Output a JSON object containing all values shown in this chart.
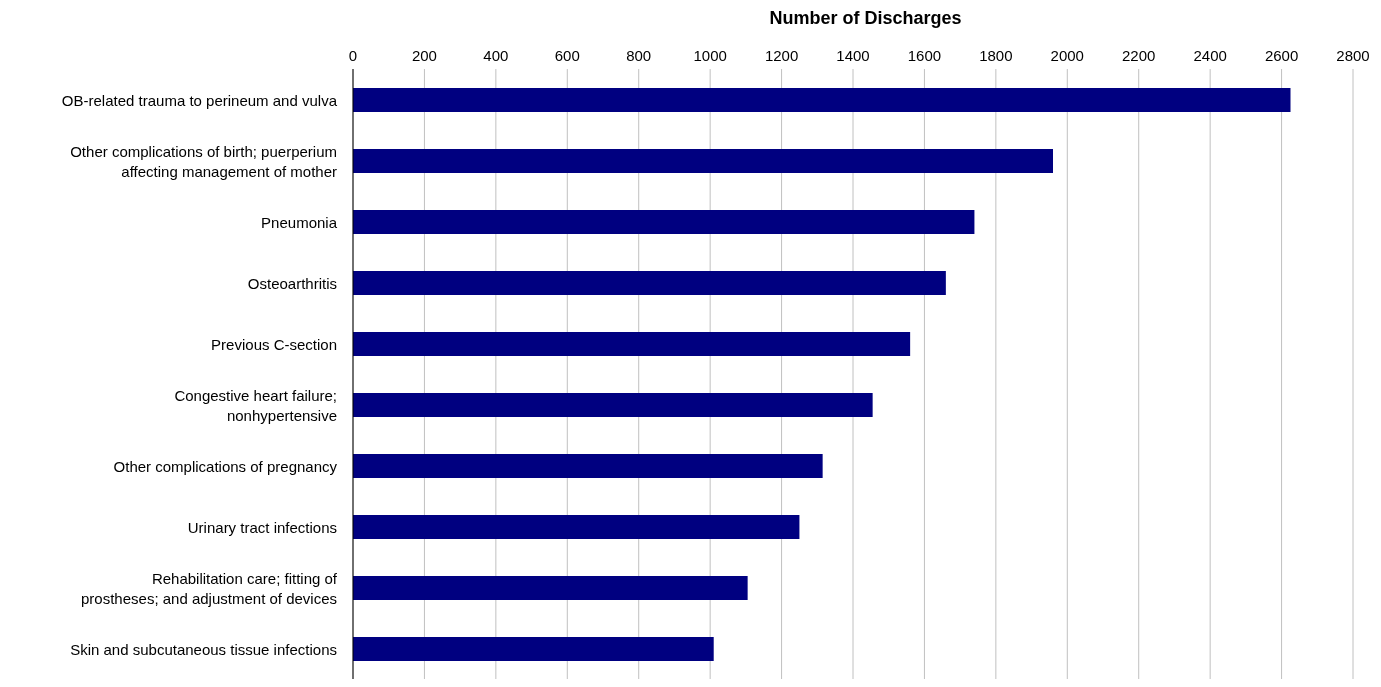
{
  "chart_data": {
    "type": "bar",
    "orientation": "horizontal",
    "xlabel": "Number of Discharges",
    "categories": [
      "OB-related trauma to perineum and vulva",
      "Other complications of birth; puerperium affecting management of mother",
      "Pneumonia",
      "Osteoarthritis",
      "Previous C-section",
      "Congestive heart failure; nonhypertensive",
      "Other complications of pregnancy",
      "Urinary tract infections",
      "Rehabilitation care; fitting of prostheses; and adjustment of devices",
      "Skin and subcutaneous tissue infections"
    ],
    "values": [
      2625,
      1960,
      1740,
      1660,
      1560,
      1455,
      1315,
      1250,
      1105,
      1010
    ],
    "color": "#000080",
    "xlim": [
      0,
      2800
    ],
    "xticks": [
      0,
      200,
      400,
      600,
      800,
      1000,
      1200,
      1400,
      1600,
      1800,
      2000,
      2200,
      2400,
      2600,
      2800
    ],
    "grid": "x"
  }
}
